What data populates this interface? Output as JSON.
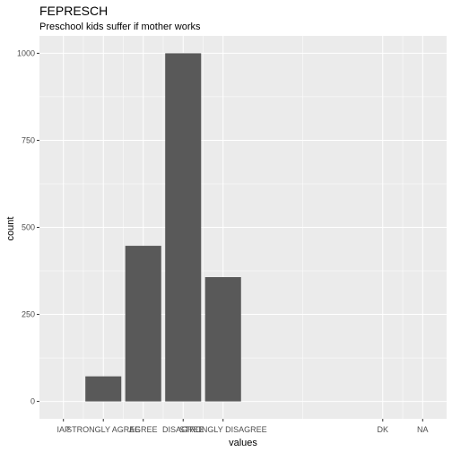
{
  "chart_data": {
    "type": "bar",
    "title": "FEPRESCH",
    "subtitle": "Preschool kids suffer if mother works",
    "xlabel": "values",
    "ylabel": "count",
    "categories": [
      "IAP",
      "STRONGLY AGREE",
      "AGREE",
      "DISAGREE",
      "STRONGLY DISAGREE",
      "DK",
      "NA"
    ],
    "x_positions": [
      0,
      1,
      2,
      3,
      4,
      8,
      9
    ],
    "x_range": [
      -0.6,
      9.6
    ],
    "bars": [
      {
        "x": 1,
        "label": "STRONGLY AGREE",
        "value": 72
      },
      {
        "x": 2,
        "label": "AGREE",
        "value": 447
      },
      {
        "x": 3,
        "label": "DISAGREE",
        "value": 1000
      },
      {
        "x": 4,
        "label": "STRONGLY DISAGREE",
        "value": 357
      }
    ],
    "ylim": [
      -50,
      1050
    ],
    "yticks": [
      0,
      250,
      500,
      750,
      1000
    ],
    "grid": true,
    "bar_color": "#595959",
    "panel_color": "#ebebeb",
    "grid_color": "#ffffff"
  }
}
